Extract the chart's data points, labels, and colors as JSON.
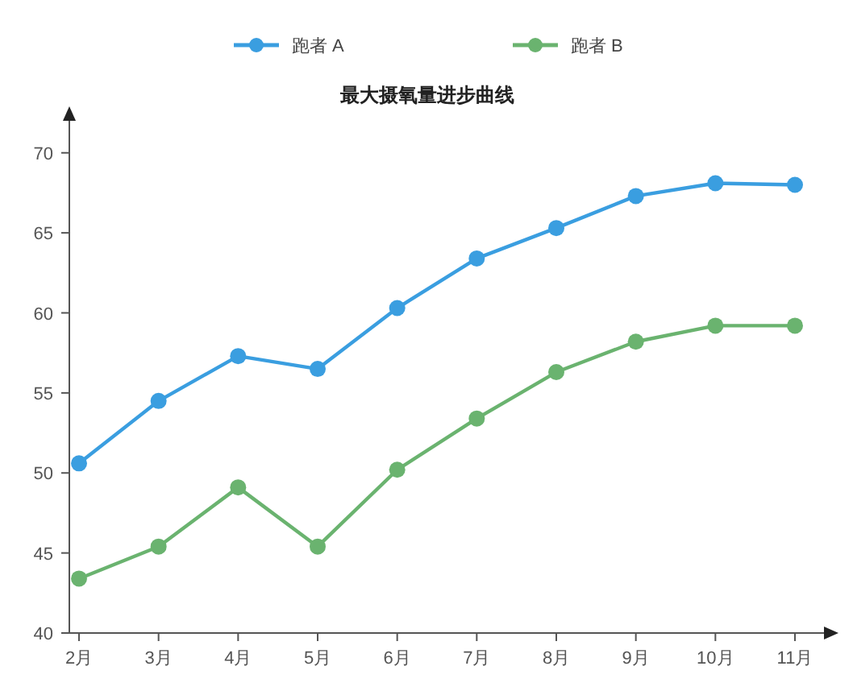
{
  "chart_data": {
    "type": "line",
    "title": "最大摄氧量进步曲线",
    "categories": [
      "2月",
      "3月",
      "4月",
      "5月",
      "6月",
      "7月",
      "8月",
      "9月",
      "10月",
      "11月"
    ],
    "series": [
      {
        "name": "跑者 A",
        "color": "#3a9ee0",
        "values": [
          50.6,
          54.5,
          57.3,
          56.5,
          60.3,
          63.4,
          65.3,
          67.3,
          68.1,
          68.0
        ]
      },
      {
        "name": "跑者 B",
        "color": "#6ab36f",
        "values": [
          43.4,
          45.4,
          49.1,
          45.4,
          50.2,
          53.4,
          56.3,
          58.2,
          59.2,
          59.2
        ]
      }
    ],
    "ylim": [
      40,
      72
    ],
    "yticks": [
      40,
      45,
      50,
      55,
      60,
      65,
      70
    ],
    "grid": false,
    "legend": "top",
    "marker": "circle",
    "line_style": "solid"
  }
}
